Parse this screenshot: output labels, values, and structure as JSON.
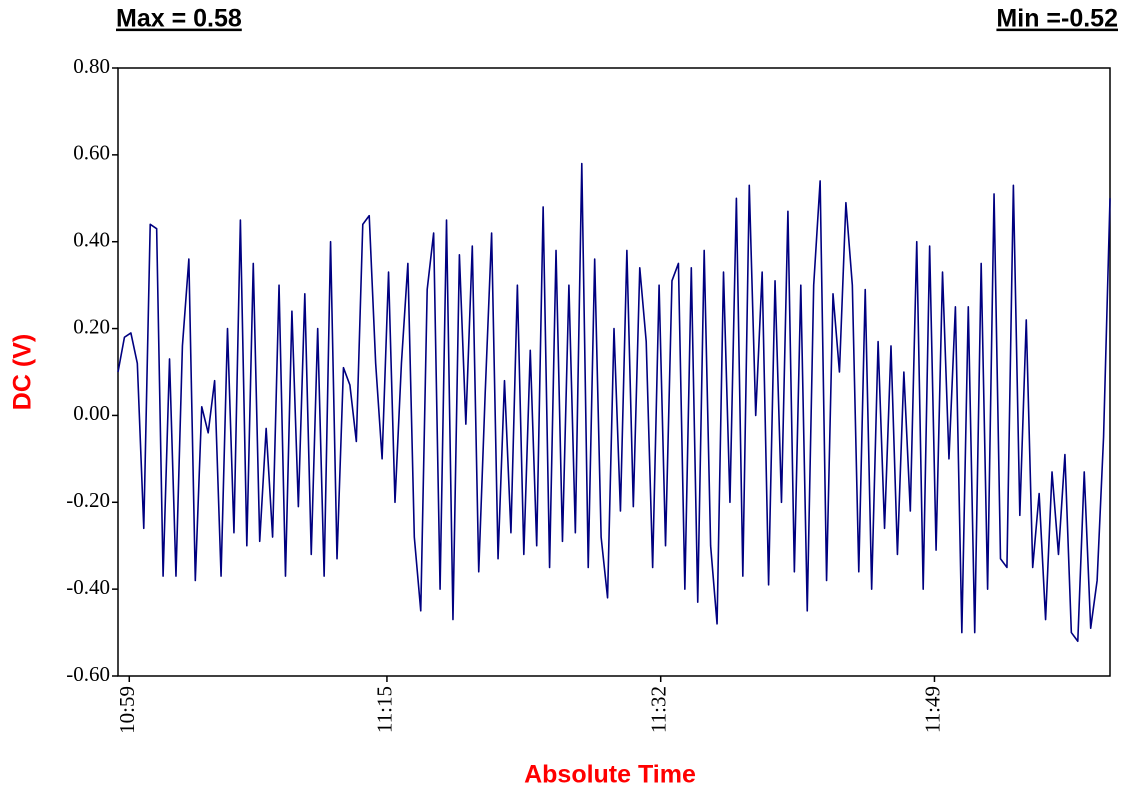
{
  "chart_data": {
    "type": "line",
    "max_label": "Max = 0.58",
    "min_label": "Min =-0.52",
    "y_label": "DC (V)",
    "x_label": "Absolute Time",
    "xlim": [
      658.3,
      719.9
    ],
    "xticks": [
      {
        "value": 659,
        "label": "10:59"
      },
      {
        "value": 675,
        "label": "11:15"
      },
      {
        "value": 692,
        "label": "11:32"
      },
      {
        "value": 709,
        "label": "11:49"
      }
    ],
    "ylim": [
      -0.6,
      0.8
    ],
    "yticks": [
      {
        "value": 0.8,
        "label": "0.80"
      },
      {
        "value": 0.6,
        "label": "0.60"
      },
      {
        "value": 0.4,
        "label": "0.40"
      },
      {
        "value": 0.2,
        "label": "0.20"
      },
      {
        "value": 0,
        "label": "0.00"
      },
      {
        "value": -0.2,
        "label": "-0.20"
      },
      {
        "value": -0.4,
        "label": "-0.40"
      },
      {
        "value": -0.6,
        "label": "-0.60"
      }
    ],
    "grid": false,
    "x": [
      658.3,
      658.7,
      659.1,
      659.5,
      659.9,
      660.3,
      660.7,
      661.1,
      661.5,
      661.9,
      662.3,
      662.7,
      663.1,
      663.5,
      663.9,
      664.3,
      664.7,
      665.1,
      665.5,
      665.9,
      666.3,
      666.7,
      667.1,
      667.5,
      667.9,
      668.3,
      668.7,
      669.1,
      669.5,
      669.9,
      670.3,
      670.7,
      671.1,
      671.5,
      671.9,
      672.3,
      672.7,
      673.1,
      673.5,
      673.9,
      674.3,
      674.7,
      675.1,
      675.5,
      675.9,
      676.3,
      676.7,
      677.1,
      677.5,
      677.9,
      678.3,
      678.7,
      679.1,
      679.5,
      679.9,
      680.3,
      680.7,
      681.1,
      681.5,
      681.9,
      682.3,
      682.7,
      683.1,
      683.5,
      683.9,
      684.3,
      684.7,
      685.1,
      685.5,
      685.9,
      686.3,
      686.7,
      687.1,
      687.5,
      687.9,
      688.3,
      688.7,
      689.1,
      689.5,
      689.9,
      690.3,
      690.7,
      691.1,
      691.5,
      691.9,
      692.3,
      692.7,
      693.1,
      693.5,
      693.9,
      694.3,
      694.7,
      695.1,
      695.5,
      695.9,
      696.3,
      696.7,
      697.1,
      697.5,
      697.9,
      698.3,
      698.7,
      699.1,
      699.5,
      699.9,
      700.3,
      700.7,
      701.1,
      701.5,
      701.9,
      702.3,
      702.7,
      703.1,
      703.5,
      703.9,
      704.3,
      704.7,
      705.1,
      705.5,
      705.9,
      706.3,
      706.7,
      707.1,
      707.5,
      707.9,
      708.3,
      708.7,
      709.1,
      709.5,
      709.9,
      710.3,
      710.7,
      711.1,
      711.5,
      711.9,
      712.3,
      712.7,
      713.1,
      713.5,
      713.9,
      714.3,
      714.7,
      715.1,
      715.5,
      715.9,
      716.3,
      716.7,
      717.1,
      717.5,
      717.9,
      718.3,
      718.7,
      719.1,
      719.5,
      719.9
    ],
    "series": [
      {
        "name": "DC",
        "color": "#000080",
        "values": [
          0.1,
          0.18,
          0.19,
          0.12,
          -0.26,
          0.44,
          0.43,
          -0.37,
          0.13,
          -0.37,
          0.16,
          0.36,
          -0.38,
          0.02,
          -0.04,
          0.08,
          -0.37,
          0.2,
          -0.27,
          0.45,
          -0.3,
          0.35,
          -0.29,
          -0.03,
          -0.28,
          0.3,
          -0.37,
          0.24,
          -0.21,
          0.28,
          -0.32,
          0.2,
          -0.37,
          0.4,
          -0.33,
          0.11,
          0.07,
          -0.06,
          0.44,
          0.46,
          0.12,
          -0.1,
          0.33,
          -0.2,
          0.12,
          0.35,
          -0.28,
          -0.45,
          0.29,
          0.42,
          -0.4,
          0.45,
          -0.47,
          0.37,
          -0.02,
          0.39,
          -0.36,
          0.05,
          0.42,
          -0.33,
          0.08,
          -0.27,
          0.3,
          -0.32,
          0.15,
          -0.3,
          0.48,
          -0.35,
          0.38,
          -0.29,
          0.3,
          -0.27,
          0.58,
          -0.35,
          0.36,
          -0.28,
          -0.42,
          0.2,
          -0.22,
          0.38,
          -0.21,
          0.34,
          0.17,
          -0.35,
          0.3,
          -0.3,
          0.31,
          0.35,
          -0.4,
          0.34,
          -0.43,
          0.38,
          -0.3,
          -0.48,
          0.33,
          -0.2,
          0.5,
          -0.37,
          0.53,
          0.0,
          0.33,
          -0.39,
          0.31,
          -0.2,
          0.47,
          -0.36,
          0.3,
          -0.45,
          0.3,
          0.54,
          -0.38,
          0.28,
          0.1,
          0.49,
          0.3,
          -0.36,
          0.29,
          -0.4,
          0.17,
          -0.26,
          0.16,
          -0.32,
          0.1,
          -0.22,
          0.4,
          -0.4,
          0.39,
          -0.31,
          0.33,
          -0.1,
          0.25,
          -0.5,
          0.25,
          -0.5,
          0.35,
          -0.4,
          0.51,
          -0.33,
          -0.35,
          0.53,
          -0.23,
          0.22,
          -0.35,
          -0.18,
          -0.47,
          -0.13,
          -0.32,
          -0.09,
          -0.5,
          -0.52,
          -0.13,
          -0.49,
          -0.38,
          -0.05,
          0.5
        ]
      }
    ]
  }
}
